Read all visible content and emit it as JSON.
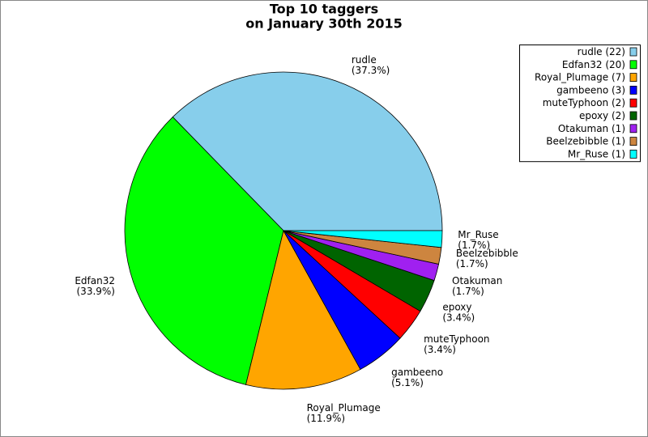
{
  "chart_data": {
    "type": "pie",
    "title": [
      "Top 10 taggers",
      "on January 30th 2015"
    ],
    "categories": [
      "rudle",
      "Edfan32",
      "Royal_Plumage",
      "gambeeno",
      "muteTyphoon",
      "epoxy",
      "Otakuman",
      "Beelzebibble",
      "Mr_Ruse"
    ],
    "values": [
      22,
      20,
      7,
      3,
      2,
      2,
      1,
      1,
      1
    ],
    "value_labels": [
      "(22)",
      "(20)",
      "(7)",
      "(3)",
      "(2)",
      "(2)",
      "(1)",
      "(1)",
      "(1)"
    ],
    "percent_labels": [
      "(37.3%)",
      "(33.9%)",
      "(11.9%)",
      "(5.1%)",
      "(3.4%)",
      "(3.4%)",
      "(1.7%)",
      "(1.7%)",
      "(1.7%)"
    ],
    "colors": [
      "#87ceeb",
      "#00ff00",
      "#ffa500",
      "#0000ff",
      "#ff0000",
      "#006400",
      "#a020f0",
      "#cd853f",
      "#00ffff"
    ],
    "legend_position": "upper right"
  }
}
